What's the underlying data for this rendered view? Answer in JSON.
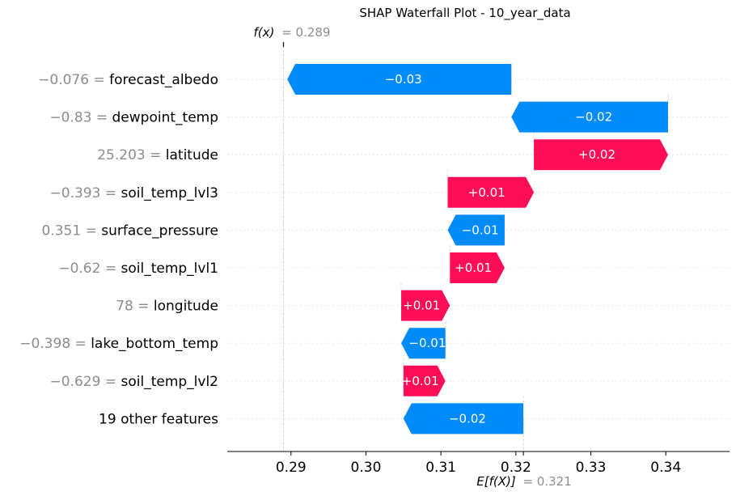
{
  "title": "SHAP Waterfall Plot - 10_year_data",
  "fx_label": "f(x)",
  "fx_value": "= 0.289",
  "ex_label": "E[f(X)]",
  "ex_value": "= 0.321",
  "colors": {
    "positive": "#ff0d57",
    "negative": "#008bfb",
    "feature_value": "#8c8c8c",
    "text": "#000000"
  },
  "chart_data": {
    "type": "bar",
    "subtype": "waterfall",
    "title": "SHAP Waterfall Plot - 10_year_data",
    "base_value": 0.321,
    "output_value": 0.289,
    "xlim": [
      0.2815,
      0.3485
    ],
    "xticks": [
      0.29,
      0.3,
      0.31,
      0.32,
      0.33,
      0.34
    ],
    "xtick_labels": [
      "0.29",
      "0.30",
      "0.31",
      "0.32",
      "0.33",
      "0.34"
    ],
    "grid": false,
    "features": [
      {
        "value_text": "−0.076 =",
        "name": "forecast_albedo",
        "start": 0.3194,
        "end": 0.2895,
        "label": "−0.03"
      },
      {
        "value_text": "−0.83 =",
        "name": "dewpoint_temp",
        "start": 0.3403,
        "end": 0.3194,
        "label": "−0.02"
      },
      {
        "value_text": "25.203 =",
        "name": "latitude",
        "start": 0.3224,
        "end": 0.3403,
        "label": "+0.02"
      },
      {
        "value_text": "−0.393 =",
        "name": "soil_temp_lvl3",
        "start": 0.3109,
        "end": 0.3224,
        "label": "+0.01"
      },
      {
        "value_text": "0.351 =",
        "name": "surface_pressure",
        "start": 0.3185,
        "end": 0.3109,
        "label": "−0.01"
      },
      {
        "value_text": "−0.62 =",
        "name": "soil_temp_lvl1",
        "start": 0.3112,
        "end": 0.3185,
        "label": "+0.01"
      },
      {
        "value_text": "78 =",
        "name": "longitude",
        "start": 0.3047,
        "end": 0.3112,
        "label": "+0.01"
      },
      {
        "value_text": "−0.398 =",
        "name": "lake_bottom_temp",
        "start": 0.3106,
        "end": 0.3047,
        "label": "−0.01"
      },
      {
        "value_text": "−0.629 =",
        "name": "soil_temp_lvl2",
        "start": 0.305,
        "end": 0.3106,
        "label": "+0.01"
      },
      {
        "value_text": "",
        "name": "19 other features",
        "start": 0.321,
        "end": 0.305,
        "label": "−0.02"
      }
    ]
  }
}
